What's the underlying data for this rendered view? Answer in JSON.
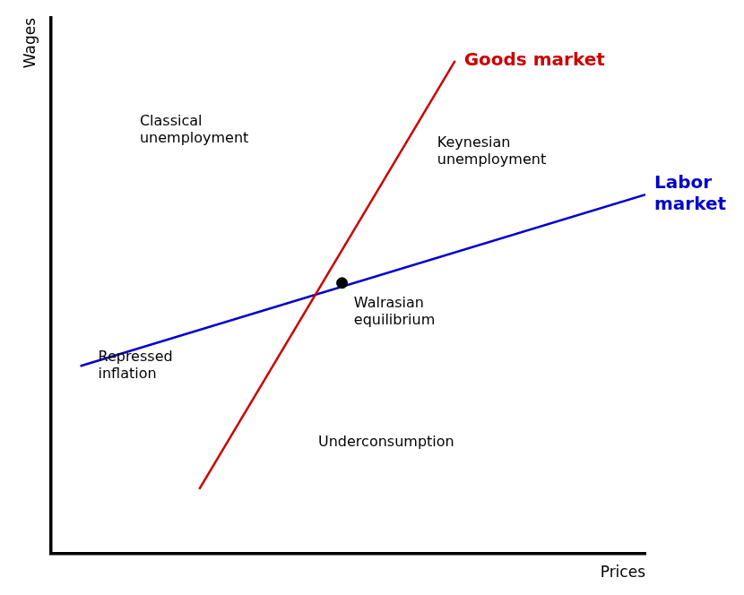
{
  "chart_data": {
    "type": "line",
    "xlabel": "Prices",
    "ylabel": "Wages",
    "xlim": [
      0,
      10
    ],
    "ylim": [
      0,
      10
    ],
    "tick_labels": false,
    "grid": false,
    "series": [
      {
        "name": "Goods market",
        "color": "#cc0000",
        "x": [
          2.5,
          6.8
        ],
        "values": [
          1.2,
          9.2
        ]
      },
      {
        "name": "Labor\nmarket",
        "color": "#0000cc",
        "x": [
          0.5,
          10.0
        ],
        "values": [
          3.5,
          6.7
        ]
      },
      {
        "type": "scatter",
        "marker": "circle",
        "color": "black",
        "x": [
          4.9
        ],
        "values": [
          5.05
        ]
      }
    ],
    "annotations": [
      {
        "text": "Classical\nunemployment",
        "x": 1.5,
        "y": 8.2
      },
      {
        "text": "Keynesian\nunemployment",
        "x": 6.5,
        "y": 7.8
      },
      {
        "text": "Repressed\ninflation",
        "x": 0.8,
        "y": 3.8
      },
      {
        "text": "Underconsumption",
        "x": 4.5,
        "y": 2.2
      },
      {
        "text": "Walrasian\nequilibrium",
        "x": 5.1,
        "y": 4.8
      }
    ]
  }
}
